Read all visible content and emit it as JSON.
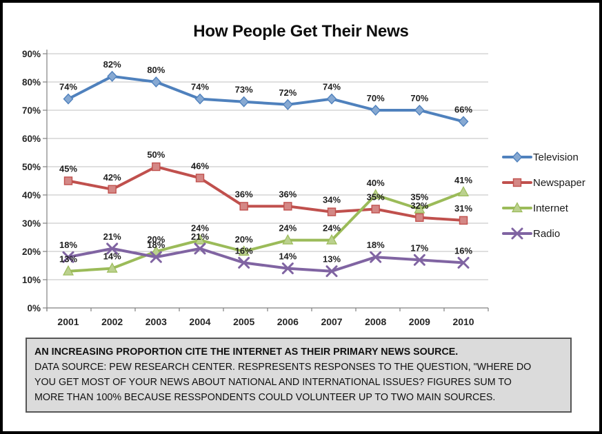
{
  "chart_data": {
    "type": "line",
    "title": "How People Get Their News",
    "x_labels": [
      "2001",
      "2002",
      "2003",
      "2004",
      "2005",
      "2006",
      "2007",
      "2008",
      "2009",
      "2010"
    ],
    "ylim": [
      0,
      90
    ],
    "ytick_step": 10,
    "ytick_labels": [
      "0%",
      "10%",
      "20%",
      "30%",
      "40%",
      "50%",
      "60%",
      "70%",
      "80%",
      "90%"
    ],
    "grid": true,
    "grid_color": "#bfbfbf",
    "axis_color": "#808080",
    "label_color": "#1f1f1f",
    "legend_position": "right",
    "data_labels": true,
    "data_label_suffix": "%",
    "series": [
      {
        "name": "Television",
        "color": "#4F81BD",
        "marker": "diamond",
        "values": [
          74,
          82,
          80,
          74,
          73,
          72,
          74,
          70,
          70,
          66
        ]
      },
      {
        "name": "Newspaper",
        "color": "#C0504D",
        "marker": "square",
        "values": [
          45,
          42,
          50,
          46,
          36,
          36,
          34,
          35,
          32,
          31
        ]
      },
      {
        "name": "Internet",
        "color": "#9BBB59",
        "marker": "triangle",
        "values": [
          13,
          14,
          20,
          24,
          20,
          24,
          24,
          40,
          35,
          41
        ]
      },
      {
        "name": "Radio",
        "color": "#8064A2",
        "marker": "x",
        "values": [
          18,
          21,
          18,
          21,
          16,
          14,
          13,
          18,
          17,
          16
        ]
      }
    ]
  },
  "caption": {
    "headline": "AN INCREASING PROPORTION CITE THE INTERNET AS THEIR PRIMARY NEWS SOURCE.",
    "body_lines": [
      "DATA SOURCE: PEW RESEARCH CENTER. RESPRESENTS RESPONSES TO THE QUESTION, \"WHERE DO",
      "YOU GET MOST OF YOUR NEWS ABOUT NATIONAL AND INTERNATIONAL ISSUES? FIGURES SUM TO",
      "MORE THAN 100% BECAUSE RESSPONDENTS COULD VOLUNTEER UP TO TWO MAIN SOURCES."
    ]
  }
}
